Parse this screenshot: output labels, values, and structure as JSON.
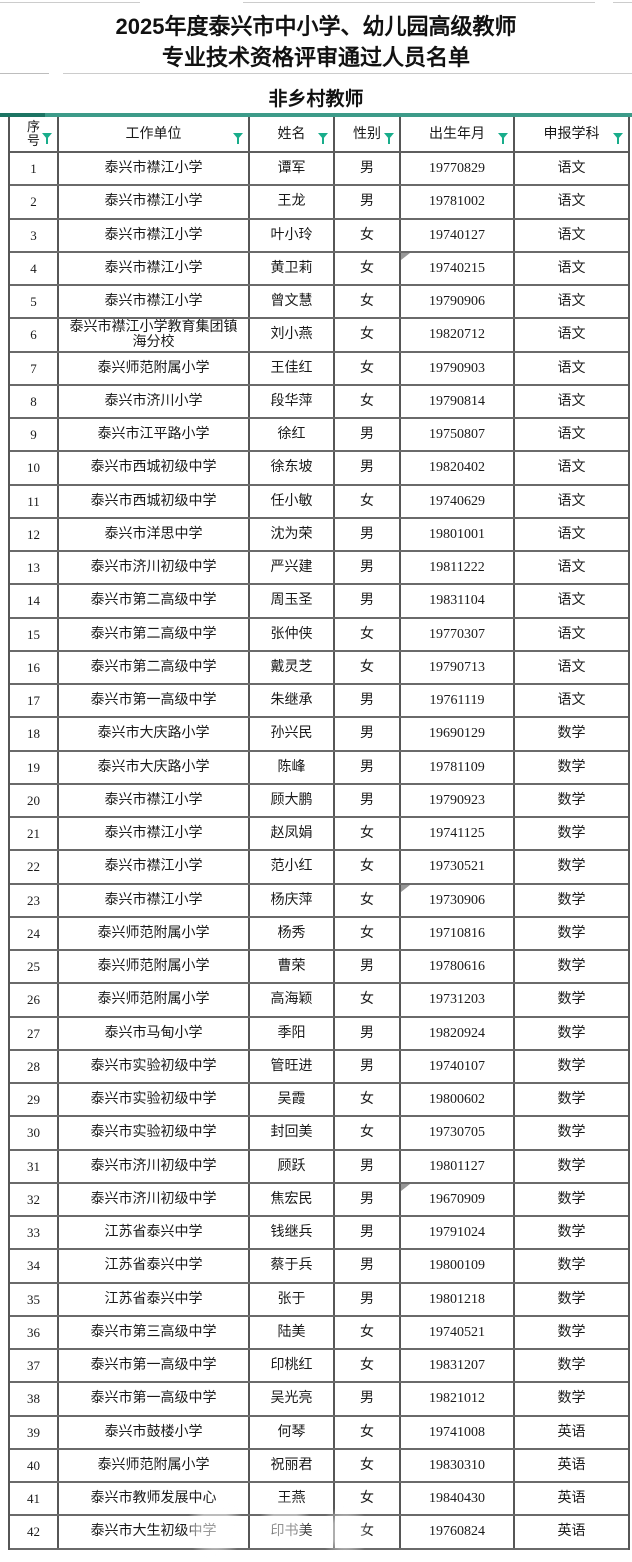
{
  "title": {
    "line1": "2025年度泰兴市中小学、幼儿园高级教师",
    "line2": "专业技术资格评审通过人员名单"
  },
  "subtitle": "非乡村教师",
  "accent_colors": {
    "filter_icon": "#19ad8b",
    "header_top_bar": "#3d9b89",
    "header_top_bar_dark": "#1c7463"
  },
  "table": {
    "columns": [
      {
        "key": "no",
        "label": "序号"
      },
      {
        "key": "unit",
        "label": "工作单位"
      },
      {
        "key": "name",
        "label": "姓名"
      },
      {
        "key": "gender",
        "label": "性别"
      },
      {
        "key": "birthdate",
        "label": "出生年月"
      },
      {
        "key": "subject",
        "label": "申报学科"
      }
    ],
    "filter_icon_name": "filter-funnel-icon",
    "corner_marker_rows": [
      4,
      23,
      32
    ],
    "rows": [
      [
        "1",
        "泰兴市襟江小学",
        "谭军",
        "男",
        "19770829",
        "语文"
      ],
      [
        "2",
        "泰兴市襟江小学",
        "王龙",
        "男",
        "19781002",
        "语文"
      ],
      [
        "3",
        "泰兴市襟江小学",
        "叶小玲",
        "女",
        "19740127",
        "语文"
      ],
      [
        "4",
        "泰兴市襟江小学",
        "黄卫莉",
        "女",
        "19740215",
        "语文"
      ],
      [
        "5",
        "泰兴市襟江小学",
        "曾文慧",
        "女",
        "19790906",
        "语文"
      ],
      [
        "6",
        "泰兴市襟江小学教育集团镇海分校",
        "刘小燕",
        "女",
        "19820712",
        "语文"
      ],
      [
        "7",
        "泰兴师范附属小学",
        "王佳红",
        "女",
        "19790903",
        "语文"
      ],
      [
        "8",
        "泰兴市济川小学",
        "段华萍",
        "女",
        "19790814",
        "语文"
      ],
      [
        "9",
        "泰兴市江平路小学",
        "徐红",
        "男",
        "19750807",
        "语文"
      ],
      [
        "10",
        "泰兴市西城初级中学",
        "徐东坡",
        "男",
        "19820402",
        "语文"
      ],
      [
        "11",
        "泰兴市西城初级中学",
        "任小敏",
        "女",
        "19740629",
        "语文"
      ],
      [
        "12",
        "泰兴市洋思中学",
        "沈为荣",
        "男",
        "19801001",
        "语文"
      ],
      [
        "13",
        "泰兴市济川初级中学",
        "严兴建",
        "男",
        "19811222",
        "语文"
      ],
      [
        "14",
        "泰兴市第二高级中学",
        "周玉圣",
        "男",
        "19831104",
        "语文"
      ],
      [
        "15",
        "泰兴市第二高级中学",
        "张仲侠",
        "女",
        "19770307",
        "语文"
      ],
      [
        "16",
        "泰兴市第二高级中学",
        "戴灵芝",
        "女",
        "19790713",
        "语文"
      ],
      [
        "17",
        "泰兴市第一高级中学",
        "朱继承",
        "男",
        "19761119",
        "语文"
      ],
      [
        "18",
        "泰兴市大庆路小学",
        "孙兴民",
        "男",
        "19690129",
        "数学"
      ],
      [
        "19",
        "泰兴市大庆路小学",
        "陈峰",
        "男",
        "19781109",
        "数学"
      ],
      [
        "20",
        "泰兴市襟江小学",
        "顾大鹏",
        "男",
        "19790923",
        "数学"
      ],
      [
        "21",
        "泰兴市襟江小学",
        "赵凤娟",
        "女",
        "19741125",
        "数学"
      ],
      [
        "22",
        "泰兴市襟江小学",
        "范小红",
        "女",
        "19730521",
        "数学"
      ],
      [
        "23",
        "泰兴市襟江小学",
        "杨庆萍",
        "女",
        "19730906",
        "数学"
      ],
      [
        "24",
        "泰兴师范附属小学",
        "杨秀",
        "女",
        "19710816",
        "数学"
      ],
      [
        "25",
        "泰兴师范附属小学",
        "曹荣",
        "男",
        "19780616",
        "数学"
      ],
      [
        "26",
        "泰兴师范附属小学",
        "高海颖",
        "女",
        "19731203",
        "数学"
      ],
      [
        "27",
        "泰兴市马甸小学",
        "季阳",
        "男",
        "19820924",
        "数学"
      ],
      [
        "28",
        "泰兴市实验初级中学",
        "管旺进",
        "男",
        "19740107",
        "数学"
      ],
      [
        "29",
        "泰兴市实验初级中学",
        "吴霞",
        "女",
        "19800602",
        "数学"
      ],
      [
        "30",
        "泰兴市实验初级中学",
        "封回美",
        "女",
        "19730705",
        "数学"
      ],
      [
        "31",
        "泰兴市济川初级中学",
        "顾跃",
        "男",
        "19801127",
        "数学"
      ],
      [
        "32",
        "泰兴市济川初级中学",
        "焦宏民",
        "男",
        "19670909",
        "数学"
      ],
      [
        "33",
        "江苏省泰兴中学",
        "钱继兵",
        "男",
        "19791024",
        "数学"
      ],
      [
        "34",
        "江苏省泰兴中学",
        "蔡于兵",
        "男",
        "19800109",
        "数学"
      ],
      [
        "35",
        "江苏省泰兴中学",
        "张于",
        "男",
        "19801218",
        "数学"
      ],
      [
        "36",
        "泰兴市第三高级中学",
        "陆美",
        "女",
        "19740521",
        "数学"
      ],
      [
        "37",
        "泰兴市第一高级中学",
        "印桃红",
        "女",
        "19831207",
        "数学"
      ],
      [
        "38",
        "泰兴市第一高级中学",
        "吴光亮",
        "男",
        "19821012",
        "数学"
      ],
      [
        "39",
        "泰兴市鼓楼小学",
        "何琴",
        "女",
        "19741008",
        "英语"
      ],
      [
        "40",
        "泰兴师范附属小学",
        "祝丽君",
        "女",
        "19830310",
        "英语"
      ],
      [
        "41",
        "泰兴市教师发展中心",
        "王燕",
        "女",
        "19840430",
        "英语"
      ],
      [
        "42",
        "泰兴市大生初级中学",
        "印书美",
        "女",
        "19760824",
        "英语"
      ]
    ]
  }
}
